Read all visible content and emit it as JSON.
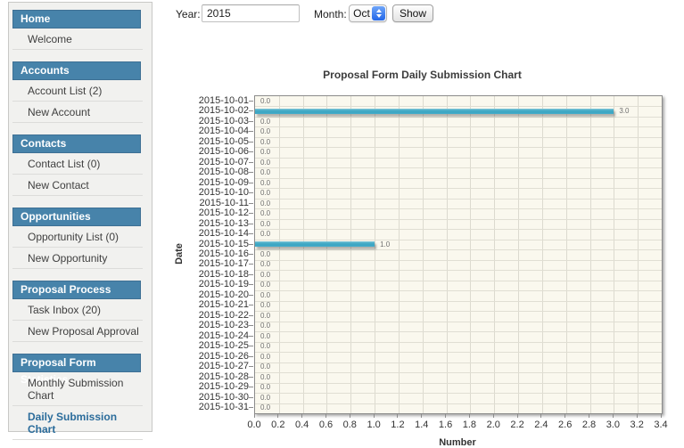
{
  "form": {
    "year_label": "Year:",
    "year_value": "2015",
    "month_label": "Month:",
    "month_value": "Oct",
    "show_label": "Show"
  },
  "sidebar": {
    "sections": [
      {
        "header": "Home",
        "items": [
          {
            "label": "Welcome",
            "active": false
          }
        ]
      },
      {
        "header": "Accounts",
        "items": [
          {
            "label": "Account List (2)",
            "active": false
          },
          {
            "label": "New Account",
            "active": false
          }
        ]
      },
      {
        "header": "Contacts",
        "items": [
          {
            "label": "Contact List (0)",
            "active": false
          },
          {
            "label": "New Contact",
            "active": false
          }
        ]
      },
      {
        "header": "Opportunities",
        "items": [
          {
            "label": "Opportunity List (0)",
            "active": false
          },
          {
            "label": "New Opportunity",
            "active": false
          }
        ]
      },
      {
        "header": "Proposal Process",
        "items": [
          {
            "label": "Task Inbox (20)",
            "active": false
          },
          {
            "label": "New Proposal Approval",
            "active": false
          }
        ]
      },
      {
        "header": "Proposal Form Statistics",
        "items": [
          {
            "label": "Monthly Submission Chart",
            "active": false
          },
          {
            "label": "Daily Submission Chart",
            "active": true
          }
        ]
      }
    ]
  },
  "chart_data": {
    "type": "bar",
    "orientation": "horizontal",
    "title": "Proposal Form Daily Submission Chart",
    "xlabel": "Number",
    "ylabel": "Date",
    "xlim": [
      0,
      3.4
    ],
    "xtick_step": 0.2,
    "xtick_labels": [
      "0.0",
      "0.2",
      "0.4",
      "0.6",
      "0.8",
      "1.0",
      "1.2",
      "1.4",
      "1.6",
      "1.8",
      "2.0",
      "2.2",
      "2.4",
      "2.6",
      "2.8",
      "3.0",
      "3.2",
      "3.4"
    ],
    "grid": true,
    "categories": [
      "2015-10-01",
      "2015-10-02",
      "2015-10-03",
      "2015-10-04",
      "2015-10-05",
      "2015-10-06",
      "2015-10-07",
      "2015-10-08",
      "2015-10-09",
      "2015-10-10",
      "2015-10-11",
      "2015-10-12",
      "2015-10-13",
      "2015-10-14",
      "2015-10-15",
      "2015-10-16",
      "2015-10-17",
      "2015-10-18",
      "2015-10-19",
      "2015-10-20",
      "2015-10-21",
      "2015-10-22",
      "2015-10-23",
      "2015-10-24",
      "2015-10-25",
      "2015-10-26",
      "2015-10-27",
      "2015-10-28",
      "2015-10-29",
      "2015-10-30",
      "2015-10-31"
    ],
    "values": [
      0,
      3,
      0,
      0,
      0,
      0,
      0,
      0,
      0,
      0,
      0,
      0,
      0,
      0,
      1,
      0,
      0,
      0,
      0,
      0,
      0,
      0,
      0,
      0,
      0,
      0,
      0,
      0,
      0,
      0,
      0
    ],
    "colors": {
      "bar": "#3ea7c4",
      "plot_bg": "#faf8ee",
      "grid": "#dcdacf",
      "header_blue": "#4783aa",
      "active_item": "#2b6c9b"
    }
  }
}
